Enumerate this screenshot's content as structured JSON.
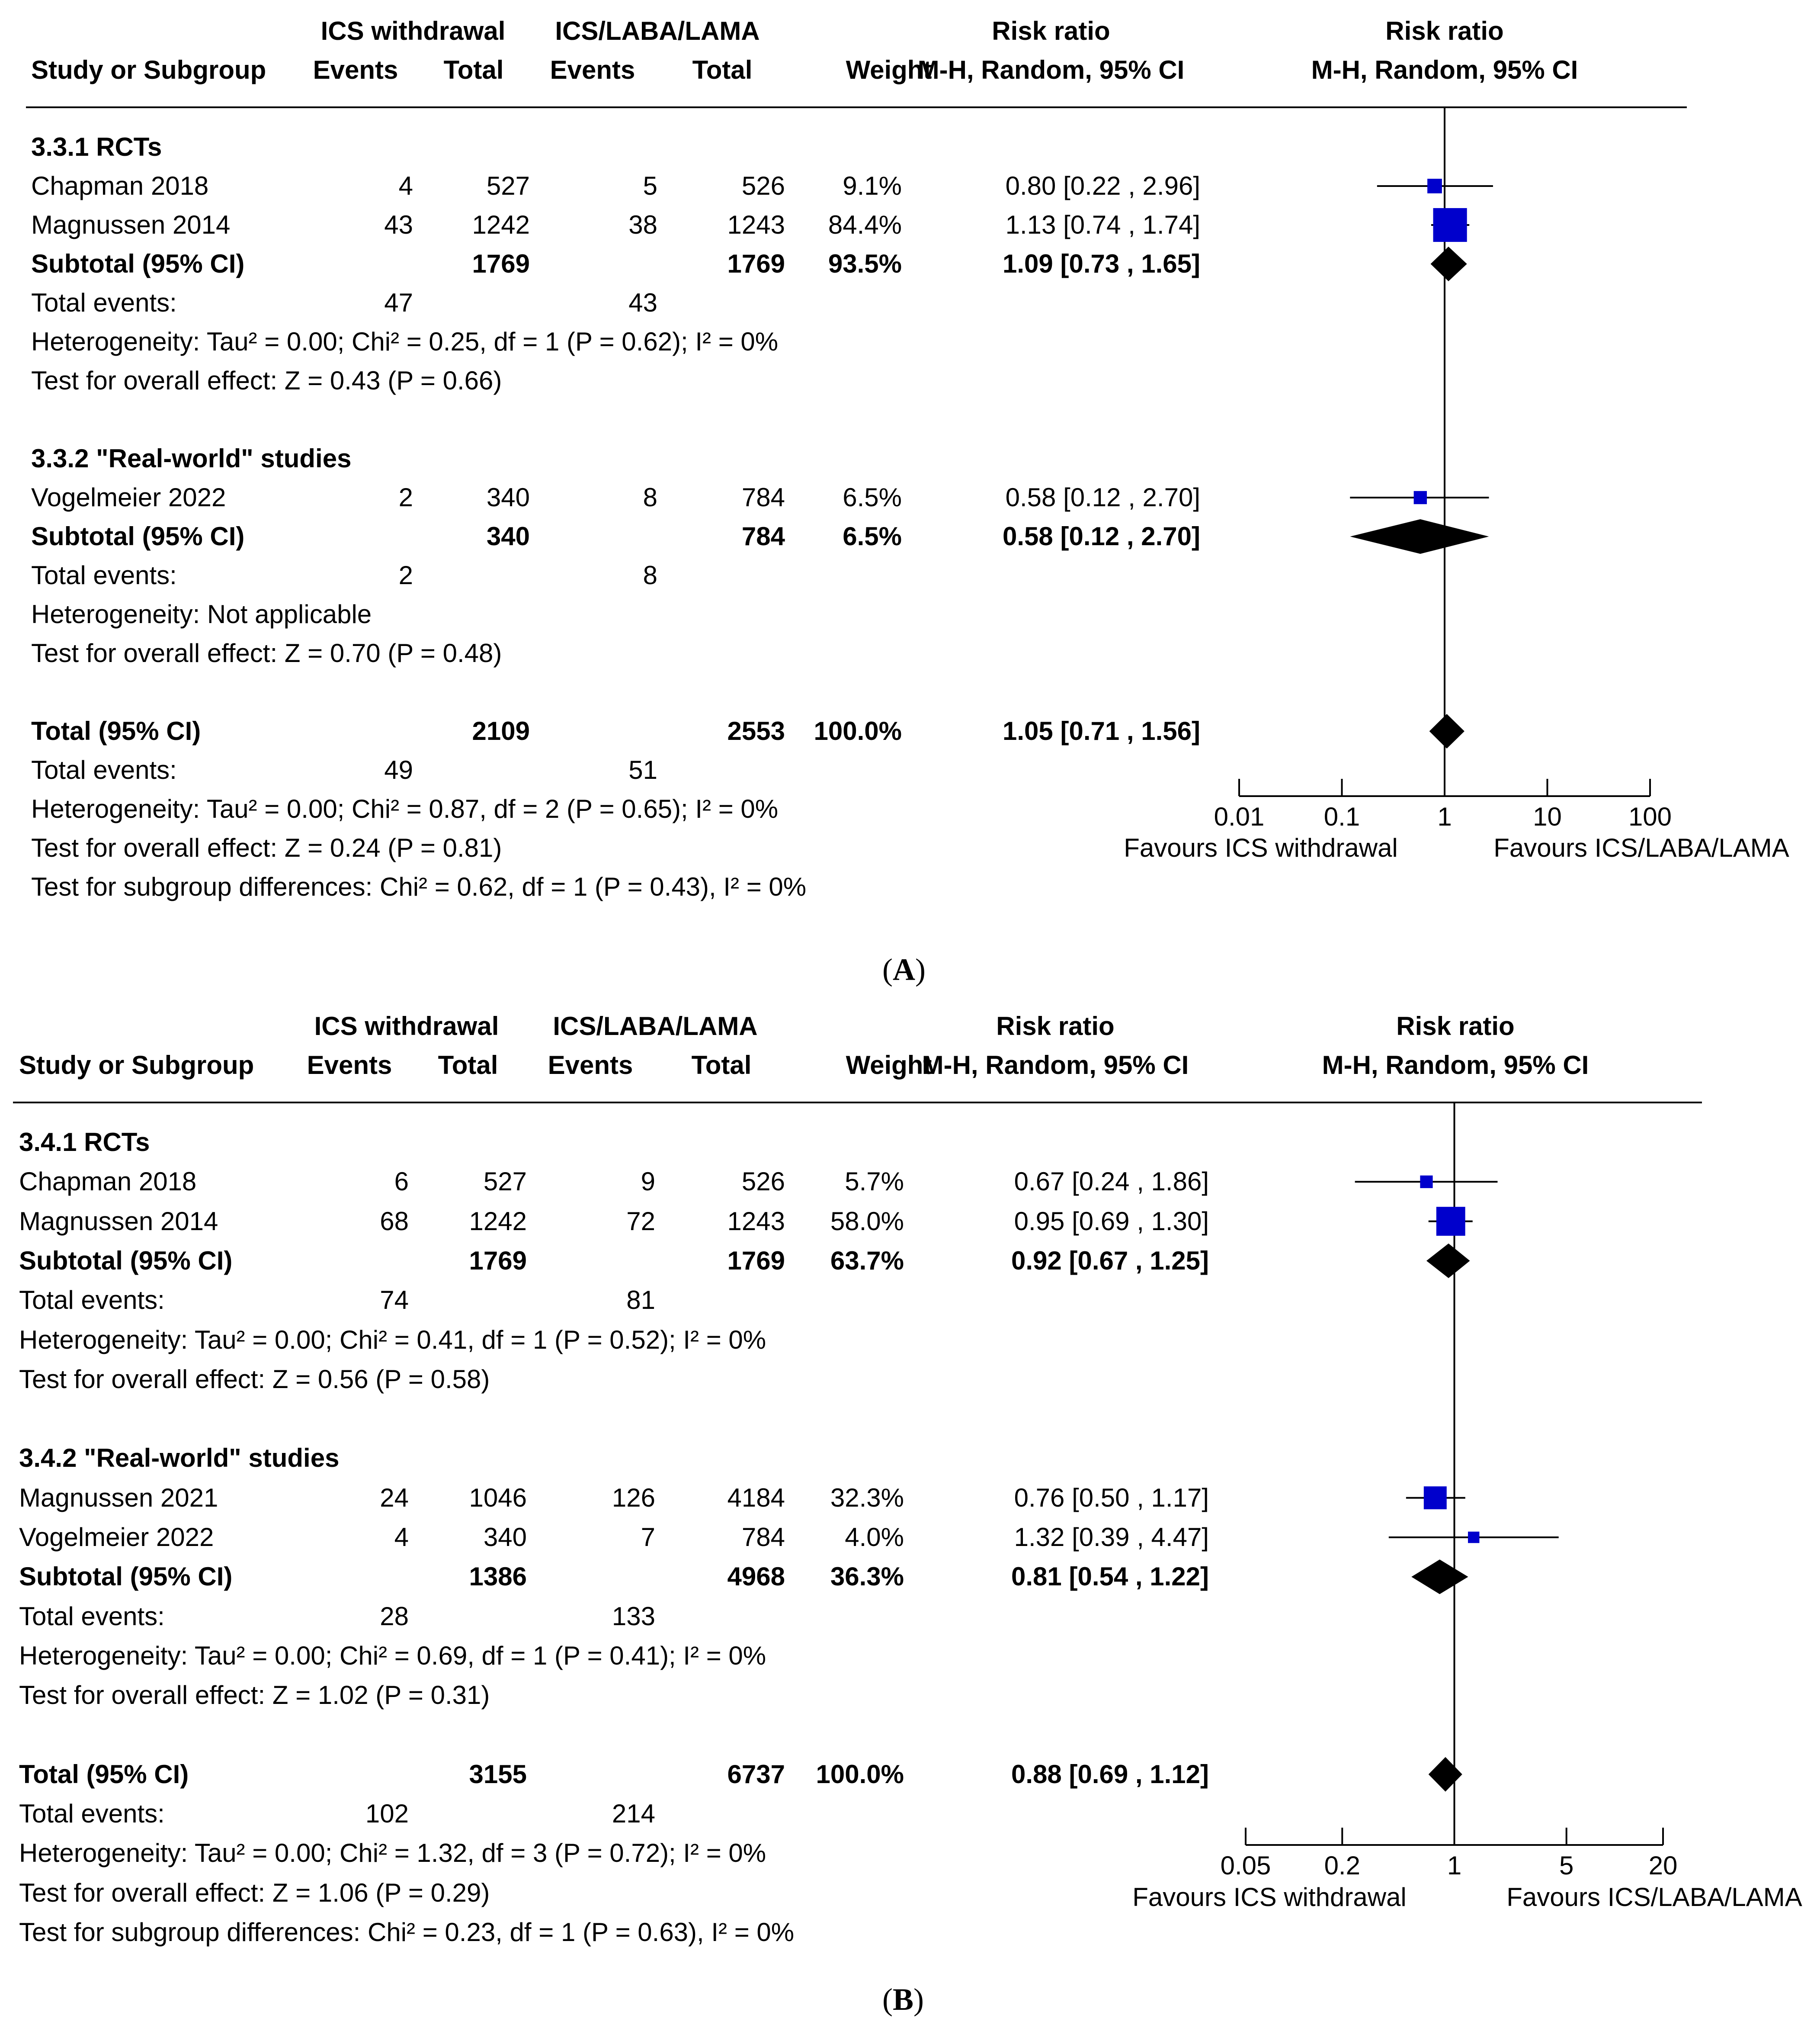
{
  "colors": {
    "marker": "#0000cc",
    "diamond": "#000000",
    "line": "#000000"
  },
  "panels": [
    {
      "caption_letter": "A",
      "headers": {
        "group1": "ICS withdrawal",
        "group2": "ICS/LABA/LAMA",
        "rr_col": "Risk ratio",
        "rr_col_sub": "M-H, Random, 95% CI",
        "rr_plot": "Risk ratio",
        "rr_plot_sub": "M-H, Random, 95% CI",
        "study": "Study or Subgroup",
        "events1": "Events",
        "total1": "Total",
        "events2": "Events",
        "total2": "Total",
        "weight": "Weight"
      },
      "rows": [
        {
          "kind": "subgroup",
          "label": "3.3.1 RCTs"
        },
        {
          "kind": "study",
          "label": "Chapman 2018",
          "e1": "4",
          "t1": "527",
          "e2": "5",
          "t2": "526",
          "w": "9.1%",
          "ci": "0.80 [0.22 , 2.96]"
        },
        {
          "kind": "study",
          "label": "Magnussen 2014",
          "e1": "43",
          "t1": "1242",
          "e2": "38",
          "t2": "1243",
          "w": "84.4%",
          "ci": "1.13 [0.74 , 1.74]"
        },
        {
          "kind": "subtotal",
          "label": "Subtotal (95% CI)",
          "t1": "1769",
          "t2": "1769",
          "w": "93.5%",
          "ci": "1.09 [0.73 , 1.65]"
        },
        {
          "kind": "events",
          "label": "Total events:",
          "e1": "47",
          "e2": "43"
        },
        {
          "kind": "text",
          "label": "Heterogeneity: Tau² = 0.00; Chi² = 0.25, df = 1 (P = 0.62); I² = 0%"
        },
        {
          "kind": "text",
          "label": "Test for overall effect: Z = 0.43 (P = 0.66)"
        },
        {
          "kind": "blank"
        },
        {
          "kind": "subgroup",
          "label": "3.3.2 \"Real-world\" studies"
        },
        {
          "kind": "study",
          "label": "Vogelmeier 2022",
          "e1": "2",
          "t1": "340",
          "e2": "8",
          "t2": "784",
          "w": "6.5%",
          "ci": "0.58 [0.12 , 2.70]"
        },
        {
          "kind": "subtotal",
          "label": "Subtotal (95% CI)",
          "t1": "340",
          "t2": "784",
          "w": "6.5%",
          "ci": "0.58 [0.12 , 2.70]"
        },
        {
          "kind": "events",
          "label": "Total events:",
          "e1": "2",
          "e2": "8"
        },
        {
          "kind": "text",
          "label": "Heterogeneity: Not applicable"
        },
        {
          "kind": "text",
          "label": "Test for overall effect: Z = 0.70 (P = 0.48)"
        },
        {
          "kind": "blank"
        },
        {
          "kind": "total",
          "label": "Total (95% CI)",
          "t1": "2109",
          "t2": "2553",
          "w": "100.0%",
          "ci": "1.05 [0.71 , 1.56]"
        },
        {
          "kind": "events",
          "label": "Total events:",
          "e1": "49",
          "e2": "51"
        },
        {
          "kind": "text",
          "label": "Heterogeneity: Tau² = 0.00; Chi² = 0.87, df = 2 (P = 0.65); I² = 0%"
        },
        {
          "kind": "text",
          "label": "Test for overall effect: Z = 0.24 (P = 0.81)"
        },
        {
          "kind": "text",
          "label": "Test for subgroup differences: Chi² = 0.62, df = 1 (P = 0.43), I² = 0%"
        }
      ],
      "chart_data": {
        "type": "forest",
        "scale": "log",
        "xlim": [
          0.01,
          100
        ],
        "null_line": 1,
        "ticks": [
          "0.01",
          "0.1",
          "1",
          "10",
          "100"
        ],
        "tick_values": [
          0.01,
          0.1,
          1,
          10,
          100
        ],
        "favours_left": "Favours ICS withdrawal",
        "favours_right": "Favours ICS/LABA/LAMA",
        "points": [
          {
            "row": 1,
            "type": "study",
            "est": 0.8,
            "lo": 0.22,
            "hi": 2.96,
            "weight": 9.1
          },
          {
            "row": 2,
            "type": "study",
            "est": 1.13,
            "lo": 0.74,
            "hi": 1.74,
            "weight": 84.4
          },
          {
            "row": 3,
            "type": "diamond",
            "est": 1.09,
            "lo": 0.73,
            "hi": 1.65
          },
          {
            "row": 9,
            "type": "study",
            "est": 0.58,
            "lo": 0.12,
            "hi": 2.7,
            "weight": 6.5
          },
          {
            "row": 10,
            "type": "diamond",
            "est": 0.58,
            "lo": 0.12,
            "hi": 2.7
          },
          {
            "row": 15,
            "type": "diamond",
            "est": 1.05,
            "lo": 0.71,
            "hi": 1.56
          }
        ]
      }
    },
    {
      "caption_letter": "B",
      "headers": {
        "group1": "ICS withdrawal",
        "group2": "ICS/LABA/LAMA",
        "rr_col": "Risk ratio",
        "rr_col_sub": "M-H, Random, 95% CI",
        "rr_plot": "Risk ratio",
        "rr_plot_sub": "M-H, Random, 95% CI",
        "study": "Study or Subgroup",
        "events1": "Events",
        "total1": "Total",
        "events2": "Events",
        "total2": "Total",
        "weight": "Weight"
      },
      "rows": [
        {
          "kind": "subgroup",
          "label": "3.4.1 RCTs"
        },
        {
          "kind": "study",
          "label": "Chapman 2018",
          "e1": "6",
          "t1": "527",
          "e2": "9",
          "t2": "526",
          "w": "5.7%",
          "ci": "0.67 [0.24 , 1.86]"
        },
        {
          "kind": "study",
          "label": "Magnussen 2014",
          "e1": "68",
          "t1": "1242",
          "e2": "72",
          "t2": "1243",
          "w": "58.0%",
          "ci": "0.95 [0.69 , 1.30]"
        },
        {
          "kind": "subtotal",
          "label": "Subtotal (95% CI)",
          "t1": "1769",
          "t2": "1769",
          "w": "63.7%",
          "ci": "0.92 [0.67 , 1.25]"
        },
        {
          "kind": "events",
          "label": "Total events:",
          "e1": "74",
          "e2": "81"
        },
        {
          "kind": "text",
          "label": "Heterogeneity: Tau² = 0.00; Chi² = 0.41, df = 1 (P = 0.52); I² = 0%"
        },
        {
          "kind": "text",
          "label": "Test for overall effect: Z = 0.56 (P = 0.58)"
        },
        {
          "kind": "blank"
        },
        {
          "kind": "subgroup",
          "label": "3.4.2 \"Real-world\" studies"
        },
        {
          "kind": "study",
          "label": "Magnussen 2021",
          "e1": "24",
          "t1": "1046",
          "e2": "126",
          "t2": "4184",
          "w": "32.3%",
          "ci": "0.76 [0.50 , 1.17]"
        },
        {
          "kind": "study",
          "label": "Vogelmeier 2022",
          "e1": "4",
          "t1": "340",
          "e2": "7",
          "t2": "784",
          "w": "4.0%",
          "ci": "1.32 [0.39 , 4.47]"
        },
        {
          "kind": "subtotal",
          "label": "Subtotal (95% CI)",
          "t1": "1386",
          "t2": "4968",
          "w": "36.3%",
          "ci": "0.81 [0.54 , 1.22]"
        },
        {
          "kind": "events",
          "label": "Total events:",
          "e1": "28",
          "e2": "133"
        },
        {
          "kind": "text",
          "label": "Heterogeneity: Tau² = 0.00; Chi² = 0.69, df = 1 (P = 0.41); I² = 0%"
        },
        {
          "kind": "text",
          "label": "Test for overall effect: Z = 1.02 (P = 0.31)"
        },
        {
          "kind": "blank"
        },
        {
          "kind": "total",
          "label": "Total (95% CI)",
          "t1": "3155",
          "t2": "6737",
          "w": "100.0%",
          "ci": "0.88 [0.69 , 1.12]"
        },
        {
          "kind": "events",
          "label": "Total events:",
          "e1": "102",
          "e2": "214"
        },
        {
          "kind": "text",
          "label": "Heterogeneity: Tau² = 0.00; Chi² = 1.32, df = 3 (P = 0.72); I² = 0%"
        },
        {
          "kind": "text",
          "label": "Test for overall effect: Z = 1.06 (P = 0.29)"
        },
        {
          "kind": "text",
          "label": "Test for subgroup differences: Chi² = 0.23, df = 1 (P = 0.63), I² = 0%"
        }
      ],
      "chart_data": {
        "type": "forest",
        "scale": "log",
        "xlim": [
          0.05,
          20
        ],
        "null_line": 1,
        "ticks": [
          "0.05",
          "0.2",
          "1",
          "5",
          "20"
        ],
        "tick_values": [
          0.05,
          0.2,
          1,
          5,
          20
        ],
        "favours_left": "Favours ICS withdrawal",
        "favours_right": "Favours ICS/LABA/LAMA",
        "points": [
          {
            "row": 1,
            "type": "study",
            "est": 0.67,
            "lo": 0.24,
            "hi": 1.86,
            "weight": 5.7
          },
          {
            "row": 2,
            "type": "study",
            "est": 0.95,
            "lo": 0.69,
            "hi": 1.3,
            "weight": 58.0
          },
          {
            "row": 3,
            "type": "diamond",
            "est": 0.92,
            "lo": 0.67,
            "hi": 1.25
          },
          {
            "row": 9,
            "type": "study",
            "est": 0.76,
            "lo": 0.5,
            "hi": 1.17,
            "weight": 32.3
          },
          {
            "row": 10,
            "type": "study",
            "est": 1.32,
            "lo": 0.39,
            "hi": 4.47,
            "weight": 4.0
          },
          {
            "row": 11,
            "type": "diamond",
            "est": 0.81,
            "lo": 0.54,
            "hi": 1.22
          },
          {
            "row": 16,
            "type": "diamond",
            "est": 0.88,
            "lo": 0.69,
            "hi": 1.12
          }
        ]
      }
    }
  ]
}
